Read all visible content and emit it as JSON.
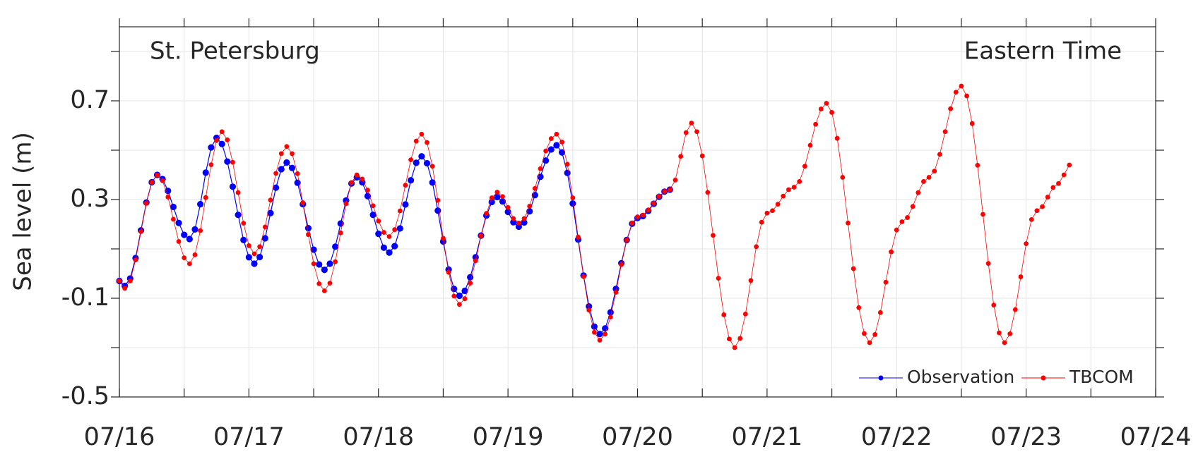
{
  "chart_data": {
    "type": "line",
    "ylabel": "Sea level (m)",
    "annotations": [
      "St. Petersburg",
      "Eastern Time"
    ],
    "xlim": [
      0,
      192
    ],
    "xticks": [
      {
        "value": 0,
        "label": "07/16"
      },
      {
        "value": 24,
        "label": "07/17"
      },
      {
        "value": 48,
        "label": "07/18"
      },
      {
        "value": 72,
        "label": "07/19"
      },
      {
        "value": 96,
        "label": "07/20"
      },
      {
        "value": 120,
        "label": "07/21"
      },
      {
        "value": 144,
        "label": "07/22"
      },
      {
        "value": 168,
        "label": "07/23"
      },
      {
        "value": 192,
        "label": "07/24"
      }
    ],
    "minor_xticks": [
      12,
      36,
      60,
      84,
      108,
      132,
      156,
      180
    ],
    "ylim": [
      -0.5,
      1.0
    ],
    "yticks": [
      -0.5,
      -0.1,
      0.3,
      0.7
    ],
    "minor_yticks": [
      -0.3,
      0.1,
      0.5,
      0.9
    ],
    "grid": true,
    "legend": "lower right",
    "series": [
      {
        "name": "Observation",
        "color": "#0000ff",
        "x": [
          0,
          1,
          2,
          3,
          4,
          5,
          6,
          7,
          8,
          9,
          10,
          11,
          12,
          13,
          14,
          15,
          16,
          17,
          18,
          19,
          20,
          21,
          22,
          23,
          24,
          25,
          26,
          27,
          28,
          29,
          30,
          31,
          32,
          33,
          34,
          35,
          36,
          37,
          38,
          39,
          40,
          41,
          42,
          43,
          44,
          45,
          46,
          47,
          48,
          49,
          50,
          51,
          52,
          53,
          54,
          55,
          56,
          57,
          58,
          59,
          60,
          61,
          62,
          63,
          64,
          65,
          66,
          67,
          68,
          69,
          70,
          71,
          72,
          73,
          74,
          75,
          76,
          77,
          78,
          79,
          80,
          81,
          82,
          83,
          84,
          85,
          86,
          87,
          88,
          89,
          90,
          91,
          92,
          93,
          94,
          95,
          96,
          97,
          98,
          99,
          100,
          101,
          102
        ],
        "values": [
          -0.03,
          -0.05,
          -0.02,
          0.063,
          0.175,
          0.288,
          0.37,
          0.4,
          0.383,
          0.335,
          0.27,
          0.205,
          0.157,
          0.14,
          0.179,
          0.281,
          0.409,
          0.511,
          0.55,
          0.525,
          0.454,
          0.352,
          0.238,
          0.136,
          0.066,
          0.04,
          0.067,
          0.143,
          0.245,
          0.348,
          0.423,
          0.45,
          0.428,
          0.368,
          0.281,
          0.184,
          0.097,
          0.037,
          0.015,
          0.04,
          0.109,
          0.203,
          0.296,
          0.365,
          0.39,
          0.37,
          0.314,
          0.238,
          0.161,
          0.105,
          0.085,
          0.111,
          0.183,
          0.28,
          0.378,
          0.449,
          0.475,
          0.447,
          0.369,
          0.255,
          0.13,
          0.016,
          -0.062,
          -0.09,
          -0.07,
          -0.015,
          0.066,
          0.154,
          0.235,
          0.29,
          0.31,
          0.292,
          0.25,
          0.208,
          0.19,
          0.207,
          0.252,
          0.318,
          0.392,
          0.458,
          0.503,
          0.52,
          0.491,
          0.408,
          0.284,
          0.138,
          -0.008,
          -0.133,
          -0.215,
          -0.245,
          -0.222,
          -0.157,
          -0.062,
          0.042,
          0.136,
          0.202,
          0.225,
          0.233,
          0.254,
          0.283,
          0.311,
          0.332,
          0.34
        ]
      },
      {
        "name": "TBCOM",
        "color": "#ff0000",
        "x": [
          0,
          1,
          2,
          3,
          4,
          5,
          6,
          7,
          8,
          9,
          10,
          11,
          12,
          13,
          14,
          15,
          16,
          17,
          18,
          19,
          20,
          21,
          22,
          23,
          24,
          25,
          26,
          27,
          28,
          29,
          30,
          31,
          32,
          33,
          34,
          35,
          36,
          37,
          38,
          39,
          40,
          41,
          42,
          43,
          44,
          45,
          46,
          47,
          48,
          49,
          50,
          51,
          52,
          53,
          54,
          55,
          56,
          57,
          58,
          59,
          60,
          61,
          62,
          63,
          64,
          65,
          66,
          67,
          68,
          69,
          70,
          71,
          72,
          73,
          74,
          75,
          76,
          77,
          78,
          79,
          80,
          81,
          82,
          83,
          84,
          85,
          86,
          87,
          88,
          89,
          90,
          91,
          92,
          93,
          94,
          95,
          96,
          97,
          98,
          99,
          100,
          101,
          102,
          103,
          104,
          105,
          106,
          107,
          108,
          109,
          110,
          111,
          112,
          113,
          114,
          115,
          116,
          117,
          118,
          119,
          120,
          121,
          122,
          123,
          124,
          125,
          126,
          127,
          128,
          129,
          130,
          131,
          132,
          133,
          134,
          135,
          136,
          137,
          138,
          139,
          140,
          141,
          142,
          143,
          144,
          145,
          146,
          147,
          148,
          149,
          150,
          151,
          152,
          153,
          154,
          155,
          156,
          157,
          158,
          159,
          160,
          161,
          162,
          163,
          164,
          165,
          166,
          167,
          168,
          169,
          170,
          171,
          172,
          173,
          174,
          175,
          176
        ],
        "values": [
          -0.03,
          -0.06,
          -0.03,
          0.055,
          0.17,
          0.285,
          0.37,
          0.4,
          0.376,
          0.31,
          0.22,
          0.13,
          0.064,
          0.04,
          0.076,
          0.174,
          0.308,
          0.441,
          0.539,
          0.575,
          0.542,
          0.451,
          0.328,
          0.204,
          0.113,
          0.08,
          0.109,
          0.189,
          0.298,
          0.406,
          0.486,
          0.515,
          0.486,
          0.405,
          0.287,
          0.158,
          0.04,
          -0.041,
          -0.07,
          -0.039,
          0.048,
          0.165,
          0.283,
          0.369,
          0.4,
          0.383,
          0.338,
          0.275,
          0.213,
          0.167,
          0.15,
          0.178,
          0.254,
          0.358,
          0.461,
          0.537,
          0.565,
          0.531,
          0.435,
          0.297,
          0.143,
          0.005,
          -0.091,
          -0.125,
          -0.102,
          -0.039,
          0.052,
          0.153,
          0.244,
          0.307,
          0.33,
          0.312,
          0.268,
          0.223,
          0.205,
          0.223,
          0.273,
          0.345,
          0.425,
          0.497,
          0.547,
          0.565,
          0.533,
          0.443,
          0.307,
          0.148,
          -0.012,
          -0.148,
          -0.238,
          -0.27,
          -0.245,
          -0.176,
          -0.076,
          0.036,
          0.136,
          0.205,
          0.23,
          0.237,
          0.258,
          0.285,
          0.313,
          0.333,
          0.34,
          0.379,
          0.475,
          0.571,
          0.61,
          0.575,
          0.477,
          0.329,
          0.155,
          -0.019,
          -0.167,
          -0.265,
          -0.3,
          -0.263,
          -0.164,
          -0.028,
          0.109,
          0.208,
          0.245,
          0.255,
          0.281,
          0.314,
          0.34,
          0.35,
          0.373,
          0.435,
          0.52,
          0.605,
          0.667,
          0.69,
          0.653,
          0.548,
          0.39,
          0.205,
          0.02,
          -0.138,
          -0.243,
          -0.28,
          -0.247,
          -0.158,
          -0.035,
          0.088,
          0.177,
          0.21,
          0.227,
          0.272,
          0.328,
          0.373,
          0.39,
          0.415,
          0.483,
          0.575,
          0.668,
          0.735,
          0.76,
          0.72,
          0.608,
          0.439,
          0.24,
          0.041,
          -0.128,
          -0.24,
          -0.28,
          -0.244,
          -0.146,
          -0.013,
          0.121,
          0.219,
          0.255,
          0.271,
          0.31,
          0.349,
          0.365,
          0.4,
          0.44
        ]
      }
    ]
  }
}
